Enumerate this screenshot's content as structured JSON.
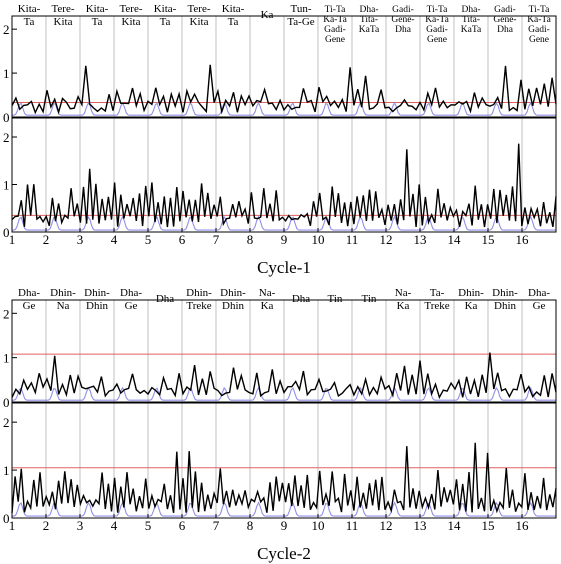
{
  "chart_data": {
    "type": "line",
    "colors": {
      "novelty": "#000000",
      "reference": "#8f8fe8",
      "threshold": "#e06060",
      "boundary": "#b0b0b0"
    },
    "cycles": [
      {
        "label": "Cycle-1",
        "x_ticks": [
          "1",
          "2",
          "3",
          "4",
          "5",
          "6",
          "7",
          "8",
          "9",
          "10",
          "11",
          "12",
          "13",
          "14",
          "15",
          "16"
        ],
        "segments": [
          [
            "Kita-",
            "Ta"
          ],
          [
            "Tere-",
            "Kita"
          ],
          [
            "Kita-",
            "Ta"
          ],
          [
            "Tere-",
            "Kita"
          ],
          [
            "Kita-",
            "Ta"
          ],
          [
            "Tere-",
            "Kita"
          ],
          [
            "Kita-",
            "Ta"
          ],
          [
            "Ka"
          ],
          [
            "Tun-",
            "Ta-Ge"
          ],
          [
            "Ti-Ta",
            "Ka-Ta",
            "Gadi-",
            "Gene"
          ],
          [
            "Dha-",
            "Tita-",
            "KaTa"
          ],
          [
            "Gadi-",
            "Gene-",
            "Dha"
          ],
          [
            "Ti-Ta",
            "Ka-Ta",
            "Gadi-",
            "Gene"
          ],
          [
            "Dha-",
            "Tita-",
            "KaTa"
          ],
          [
            "Gadi-",
            "Gene-",
            "Dha"
          ],
          [
            "Ti-Ta",
            "Ka-Ta",
            "Gadi-",
            "Gene"
          ]
        ],
        "panels": [
          {
            "y_ticks": [
              "0",
              "1",
              "2"
            ],
            "ylim": [
              0,
              2.3
            ],
            "threshold": 0.33,
            "peak_max": 1.2
          },
          {
            "y_ticks": [
              "0",
              "1",
              "2"
            ],
            "ylim": [
              0,
              2.4
            ],
            "threshold": 0.35,
            "peak_max": 2.3
          }
        ]
      },
      {
        "label": "Cycle-2",
        "x_ticks": [
          "1",
          "2",
          "3",
          "4",
          "5",
          "6",
          "7",
          "8",
          "9",
          "10",
          "11",
          "12",
          "13",
          "14",
          "15",
          "16"
        ],
        "segments": [
          [
            "Dha-",
            "Ge"
          ],
          [
            "Dhin-",
            "Na"
          ],
          [
            "Dhin-",
            "Dhin"
          ],
          [
            "Dha-",
            "Ge"
          ],
          [
            "Dha"
          ],
          [
            "Dhin-",
            "Treke"
          ],
          [
            "Dhin-",
            "Dhin"
          ],
          [
            "Na-",
            "Ka"
          ],
          [
            "Dha"
          ],
          [
            "Tin"
          ],
          [
            "Tin"
          ],
          [
            "Na-",
            "Ka"
          ],
          [
            "Ta-",
            "Treke"
          ],
          [
            "Dhin-",
            "Ka"
          ],
          [
            "Dhin-",
            "Dhin"
          ],
          [
            "Dha-",
            "Ge"
          ]
        ],
        "panels": [
          {
            "y_ticks": [
              "0",
              "1",
              "2"
            ],
            "ylim": [
              0,
              2.3
            ],
            "threshold": 1.08,
            "peak_max": 1.25
          },
          {
            "y_ticks": [
              "0",
              "1",
              "2"
            ],
            "ylim": [
              0,
              2.4
            ],
            "threshold": 1.05,
            "peak_max": 2.2
          }
        ]
      }
    ]
  }
}
